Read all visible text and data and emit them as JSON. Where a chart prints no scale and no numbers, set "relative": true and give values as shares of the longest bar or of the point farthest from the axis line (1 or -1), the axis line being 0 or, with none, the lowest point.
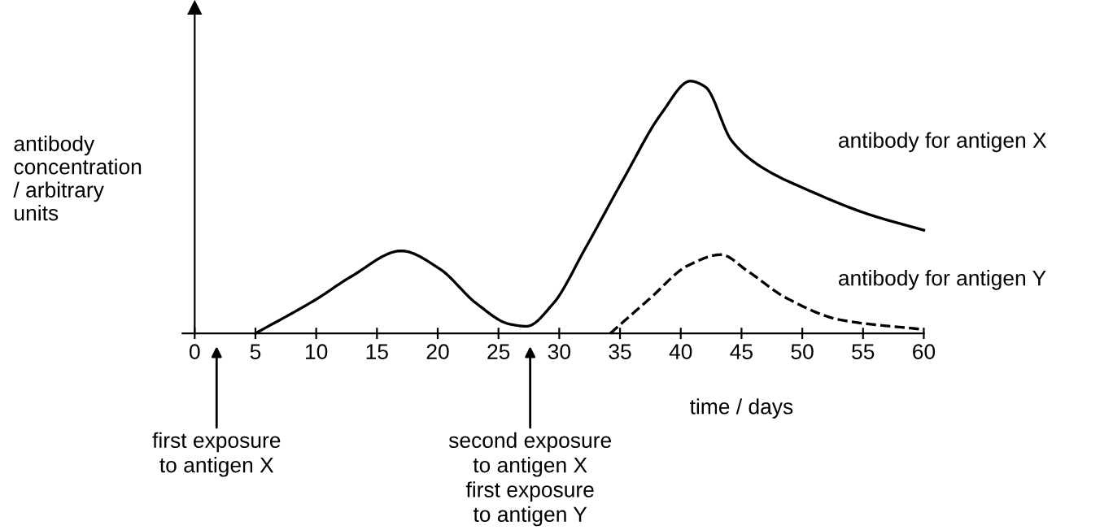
{
  "chart_data": {
    "type": "line",
    "relative": true,
    "xlabel": "time / days",
    "ylabel": "antibody\nconcentration\n/ arbitrary\nunits",
    "xlim": [
      -1,
      60
    ],
    "xticks": [
      0,
      5,
      10,
      15,
      20,
      25,
      30,
      35,
      40,
      45,
      50,
      55,
      60
    ],
    "legend": false,
    "marker": "none",
    "series": [
      {
        "name": "antibody for antigen X",
        "color": "#000000",
        "line_style": "solid",
        "x": [
          5,
          10,
          12.9,
          17,
          20.1,
          23.2,
          25.9,
          27.3,
          29.5,
          32.1,
          35.3,
          38.4,
          40.8,
          42,
          44.2,
          46.4,
          50.9,
          55.4,
          60
        ],
        "values": [
          0,
          0.135,
          0.226,
          0.327,
          0.258,
          0.118,
          0.037,
          0.028,
          0.118,
          0.333,
          0.613,
          0.871,
          1,
          0.978,
          0.763,
          0.667,
          0.559,
          0.473,
          0.409
        ]
      },
      {
        "name": "antibody for antigen Y",
        "color": "#000000",
        "line_style": "dashed",
        "x": [
          34.2,
          37.5,
          40.6,
          43.3,
          45.5,
          48.7,
          53.1,
          60
        ],
        "values": [
          0,
          0.14,
          0.269,
          0.312,
          0.247,
          0.14,
          0.054,
          0.015
        ]
      }
    ],
    "annotations": [
      "first exposure\nto antigen X",
      "second exposure\nto antigen X\nfirst exposure\nto antigen Y"
    ]
  }
}
